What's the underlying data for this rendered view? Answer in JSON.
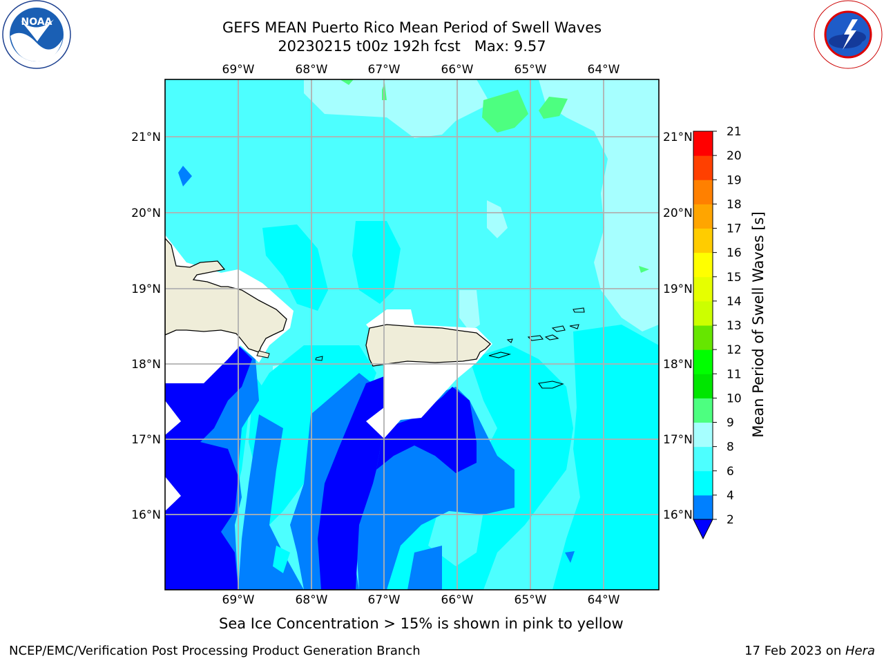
{
  "title": {
    "line1": "GEFS MEAN Puerto Rico Mean Period of Swell Waves",
    "line2": "20230215 t00z 192h fcst   Max: 9.57"
  },
  "logos": {
    "left": {
      "icon": "noaa-logo-icon",
      "text": "NOAA"
    },
    "right": {
      "icon": "nws-logo-icon",
      "ring_text": "NATIONAL WEATHER SERVICE"
    }
  },
  "map": {
    "lon_ticks": [
      "69°W",
      "68°W",
      "67°W",
      "66°W",
      "65°W",
      "64°W"
    ],
    "lat_ticks": [
      "21°N",
      "20°N",
      "19°N",
      "18°N",
      "17°N",
      "16°N"
    ],
    "land_color": "#efedd9",
    "nodata_color": "#ffffff"
  },
  "colorbar": {
    "title": "Mean Period of Swell Waves [s]",
    "levels": [
      "2",
      "4",
      "6",
      "8",
      "9",
      "10",
      "11",
      "12",
      "13",
      "14",
      "15",
      "16",
      "17",
      "18",
      "19",
      "20",
      "21"
    ],
    "colors": [
      "#0000ff",
      "#0080ff",
      "#00ffff",
      "#4dffff",
      "#a6ffff",
      "#4dff80",
      "#00e600",
      "#00ff00",
      "#66e600",
      "#ccff00",
      "#e6ff00",
      "#ffff00",
      "#ffcc00",
      "#ffa500",
      "#ff8000",
      "#ff4000",
      "#ff0000"
    ],
    "extend": "min"
  },
  "palette": {
    "lt2": "#0000ff",
    "2to4": "#0080ff",
    "4to6": "#00ffff",
    "6to8": "#4dffff",
    "8to9": "#a6ffff",
    "9to10": "#4dff80"
  },
  "notes": {
    "seaice": "Sea Ice Concentration > 15% is shown in pink to yellow"
  },
  "footer": {
    "left": "NCEP/EMC/Verification Post Processing Product Generation Branch",
    "right_date": "17 Feb 2023 on ",
    "right_host": "Hera"
  }
}
